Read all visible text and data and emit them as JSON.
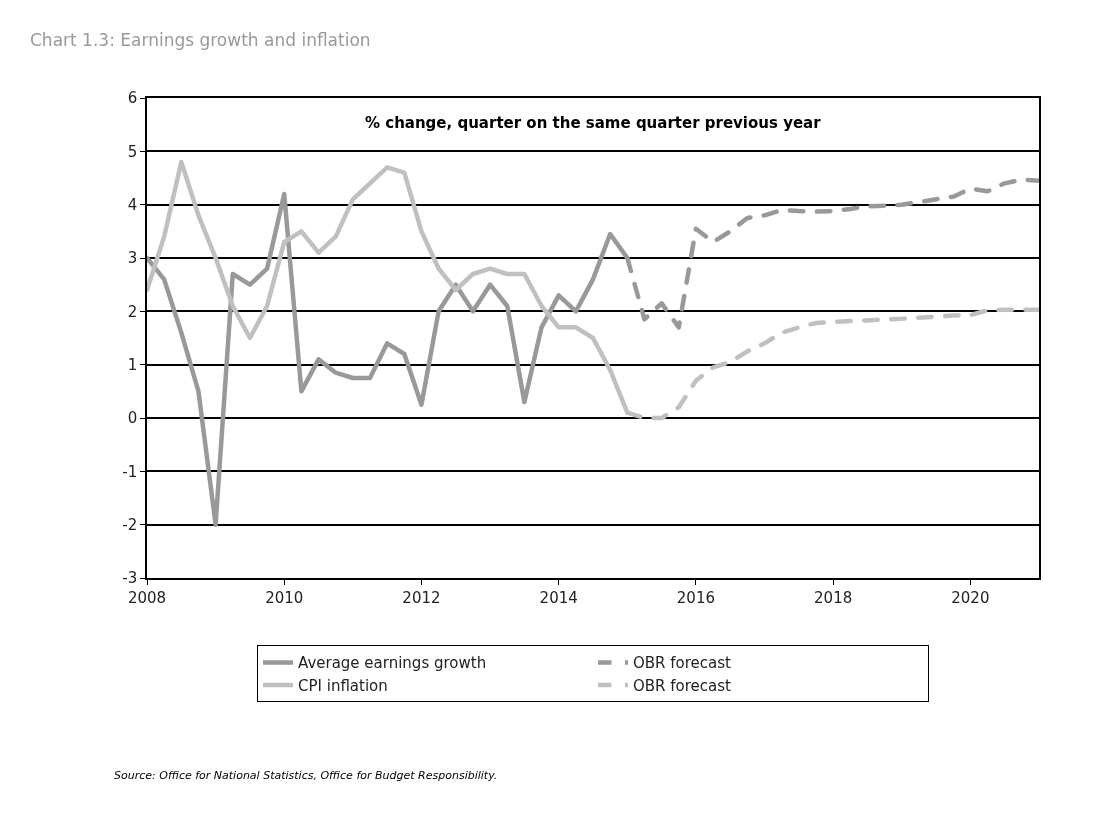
{
  "chart_data": {
    "type": "line",
    "title": "Chart 1.3: Earnings growth and inflation",
    "annotations": [
      "% change, quarter on the same quarter previous year",
      "Source: Office for National Statistics, Office for Budget Responsibility."
    ],
    "series": [
      {
        "name": "Average earnings growth",
        "color": "#999999",
        "line_style": "solid",
        "x": [
          2008,
          2008.25,
          2008.5,
          2008.75,
          2009,
          2009.25,
          2009.5,
          2009.75,
          2010,
          2010.25,
          2010.5,
          2010.75,
          2011,
          2011.25,
          2011.5,
          2011.75,
          2012,
          2012.25,
          2012.5,
          2012.75,
          2013,
          2013.25,
          2013.5,
          2013.75,
          2014,
          2014.25,
          2014.5,
          2014.75,
          2015
        ],
        "values": [
          3.0,
          2.6,
          1.6,
          0.5,
          -2.0,
          2.7,
          2.5,
          2.8,
          4.2,
          0.5,
          1.1,
          0.85,
          0.75,
          0.75,
          1.4,
          1.2,
          0.25,
          2.0,
          2.5,
          2.0,
          2.5,
          2.1,
          0.3,
          1.7,
          2.3,
          2.0,
          2.6,
          3.45,
          3.0
        ]
      },
      {
        "name": "OBR forecast",
        "color": "#999999",
        "line_style": "dashed",
        "x": [
          2015,
          2015.25,
          2015.5,
          2015.75,
          2016,
          2016.25,
          2016.5,
          2016.75,
          2017,
          2017.25,
          2017.5,
          2017.75,
          2018,
          2018.25,
          2018.5,
          2018.75,
          2019,
          2019.25,
          2019.5,
          2019.75,
          2020,
          2020.25,
          2020.5,
          2020.75,
          2021
        ],
        "values": [
          3.0,
          1.85,
          2.15,
          1.7,
          3.55,
          3.3,
          3.5,
          3.75,
          3.8,
          3.9,
          3.88,
          3.87,
          3.88,
          3.92,
          3.97,
          3.98,
          4.0,
          4.05,
          4.1,
          4.15,
          4.3,
          4.25,
          4.4,
          4.47,
          4.45
        ]
      },
      {
        "name": "CPI inflation",
        "color": "#c0c0c0",
        "line_style": "solid",
        "x": [
          2008,
          2008.25,
          2008.5,
          2008.75,
          2009,
          2009.25,
          2009.5,
          2009.75,
          2010,
          2010.25,
          2010.5,
          2010.75,
          2011,
          2011.25,
          2011.5,
          2011.75,
          2012,
          2012.25,
          2012.5,
          2012.75,
          2013,
          2013.25,
          2013.5,
          2013.75,
          2014,
          2014.25,
          2014.5,
          2014.75,
          2015
        ],
        "values": [
          2.4,
          3.4,
          4.8,
          3.8,
          3.0,
          2.1,
          1.5,
          2.1,
          3.3,
          3.5,
          3.1,
          3.4,
          4.1,
          4.4,
          4.7,
          4.6,
          3.5,
          2.8,
          2.4,
          2.7,
          2.8,
          2.7,
          2.7,
          2.1,
          1.7,
          1.7,
          1.5,
          0.9,
          0.1
        ]
      },
      {
        "name": "OBR forecast",
        "color": "#c0c0c0",
        "line_style": "dashed",
        "x": [
          2015,
          2015.25,
          2015.5,
          2015.75,
          2016,
          2016.25,
          2016.5,
          2016.75,
          2017,
          2017.25,
          2017.5,
          2017.75,
          2018,
          2018.25,
          2018.5,
          2018.75,
          2019,
          2019.25,
          2019.5,
          2019.75,
          2020,
          2020.25,
          2020.5,
          2020.75,
          2021
        ],
        "values": [
          0.1,
          0.0,
          0.0,
          0.2,
          0.7,
          0.95,
          1.05,
          1.25,
          1.4,
          1.6,
          1.7,
          1.78,
          1.8,
          1.82,
          1.83,
          1.85,
          1.86,
          1.88,
          1.9,
          1.92,
          1.93,
          2.02,
          2.03,
          2.03,
          2.03
        ]
      }
    ],
    "xlim": [
      2008,
      2021
    ],
    "xticks": [
      2008,
      2010,
      2012,
      2014,
      2016,
      2018,
      2020
    ],
    "ylim": [
      -3,
      6
    ],
    "yticks": [
      -3,
      -2,
      -1,
      0,
      1,
      2,
      3,
      4,
      5,
      6
    ],
    "grid": "y",
    "legend": "bottom",
    "marker": "none"
  }
}
